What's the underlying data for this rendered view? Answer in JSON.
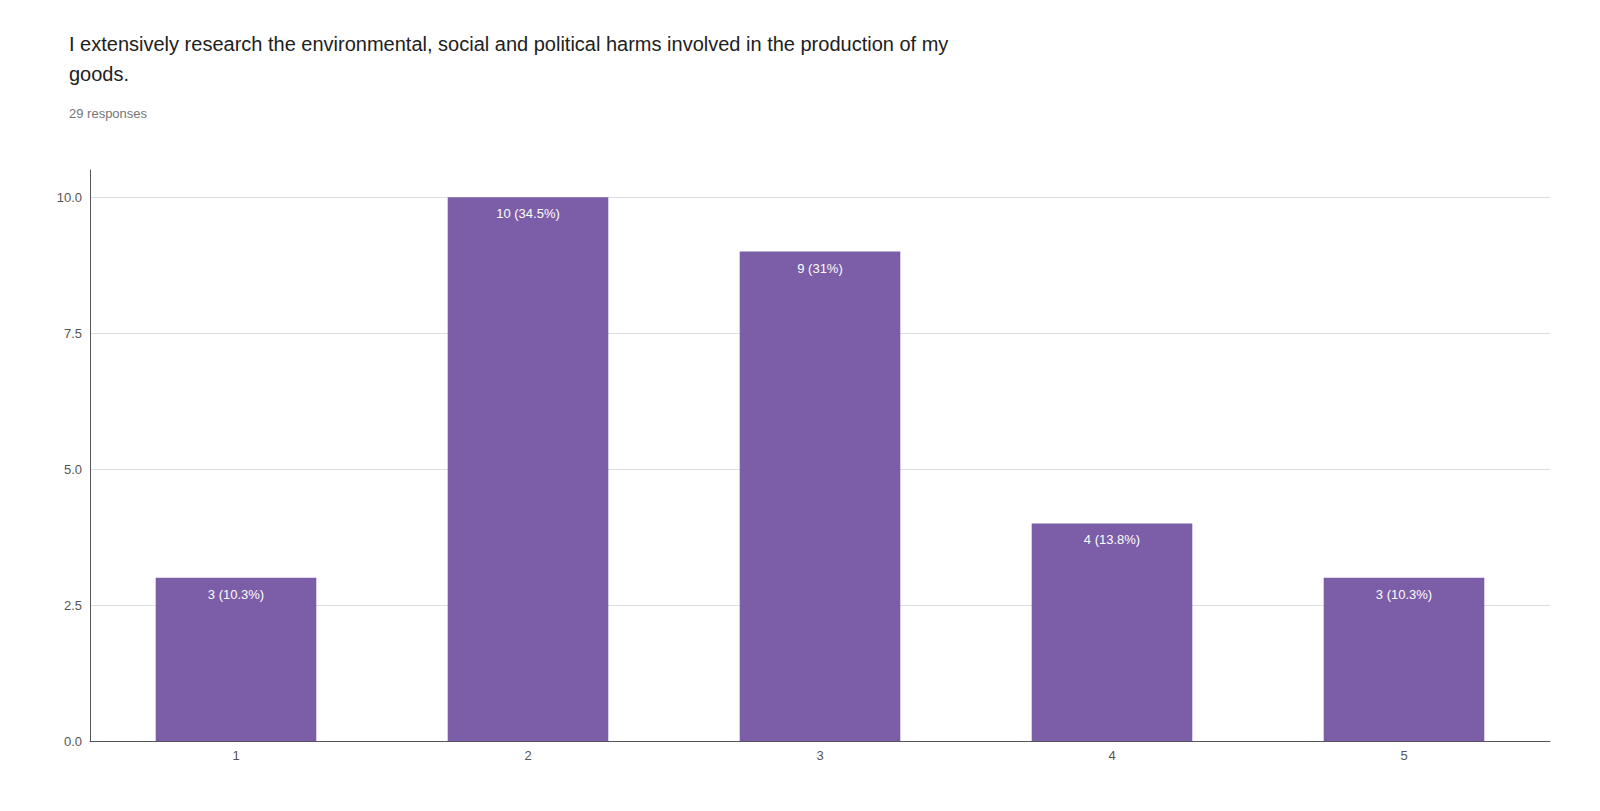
{
  "chart_data": {
    "type": "bar",
    "title": "I extensively research the environmental, social and political harms involved in the production of my\ngoods.",
    "subtitle": "29 responses",
    "categories": [
      1,
      2,
      3,
      4,
      5
    ],
    "values": [
      3,
      10,
      9,
      4,
      3
    ],
    "value_labels": [
      "3 (10.3%)",
      "10 (34.5%)",
      "9 (31%)",
      "4 (13.8%)",
      "3 (10.3%)"
    ],
    "data_labels": true,
    "color": "#7B5EA7",
    "ylim": [
      0,
      10.5
    ],
    "yticks": [
      {
        "value": 0,
        "label": "0.0"
      },
      2.5,
      {
        "value": 5,
        "label": "5.0"
      },
      7.5,
      {
        "value": 10,
        "label": "10.0"
      }
    ],
    "grid": true
  }
}
